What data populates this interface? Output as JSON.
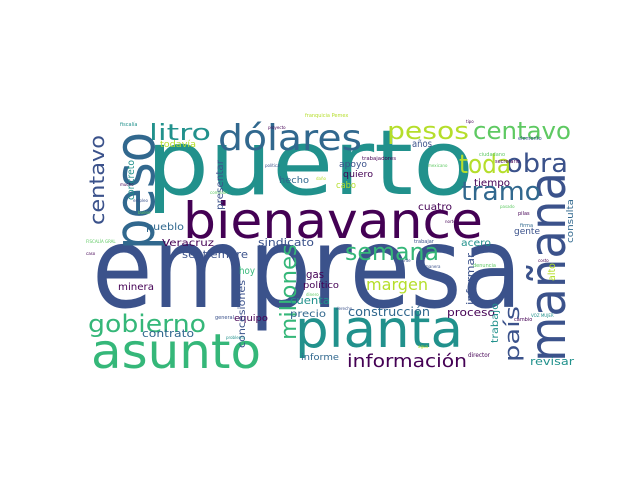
{
  "palette": {
    "purple_dark": "#440154",
    "indigo": "#3b528b",
    "blue": "#31688e",
    "teal": "#21918c",
    "green": "#35b779",
    "lime": "#5ec962",
    "yellow": "#b5de2b",
    "yellow_bright": "#fde725"
  },
  "words": {
    "empresa": "empresa",
    "puerto": "puerto",
    "bienavance": "bienavance",
    "planta": "planta",
    "manana": "mañana",
    "peso": "peso",
    "asunto": "asunto",
    "dolares": "dólares",
    "pesos": "pesos",
    "centavo_top": "centavo",
    "centavo_side": "centavo",
    "obra": "obra",
    "toda": "toda",
    "tramo": "tramo",
    "semana": "semana",
    "litro": "litro",
    "gobierno": "gobierno",
    "millones": "millones",
    "pais": "país",
    "informacion": "información",
    "margen": "margen",
    "construccion": "construcción",
    "trabajo": "trabajo",
    "informar": "informar",
    "concesiones": "concesiones",
    "septiembre": "septiembre",
    "sindicato": "sindicato",
    "veracruz": "Veracruz",
    "contrato": "contrato",
    "proceso": "proceso",
    "revisar": "revisar",
    "cuenta": "cuenta",
    "precio": "precio",
    "politico": "político",
    "gas": "gas",
    "acero": "acero",
    "cuatro": "cuatro",
    "tiempo": "tiempo",
    "hecho": "hecho",
    "quiero": "quiero",
    "apoyo": "apoyo",
    "cabo": "cabo",
    "pueblo": "pueblo",
    "concreto": "concreto",
    "presentar": "presentar",
    "todavia": "todavía",
    "anos": "años",
    "gente": "gente",
    "consulta": "consulta",
    "alto": "alto",
    "minera": "minera",
    "hoy": "hoy",
    "informe": "informe",
    "equipo": "equipo",
    "director": "director",
    "trabajadores": "trabajadores",
    "fiscalia": "fiscalía",
    "franquicia": "franquicia Pemex",
    "fiscalia_gral": "FISCALÍA GRAL",
    "firma": "firma",
    "pilas": "pilas",
    "cambio": "cambio",
    "voz_mujer": "VOZ MUJER",
    "secretario": "secretario",
    "ciudadano": "ciudadano",
    "elemento": "elemento",
    "trabajar": "trabajar",
    "denuncia": "denuncia",
    "empleo": "empleo",
    "general": "general",
    "derecho": "derecho",
    "pasado": "pasado",
    "tarde": "tarde",
    "mucho": "mucho",
    "dano": "daño",
    "caso": "caso",
    "mexicano": "mexicano",
    "tipo": "tipo",
    "problema": "problema",
    "dinero": "dinero",
    "politica": "política",
    "comision": "comisión",
    "norte": "norte",
    "manera": "manera",
    "bueno": "bueno",
    "costo": "costo",
    "agua": "agua",
    "proyecto": "proyecto"
  }
}
